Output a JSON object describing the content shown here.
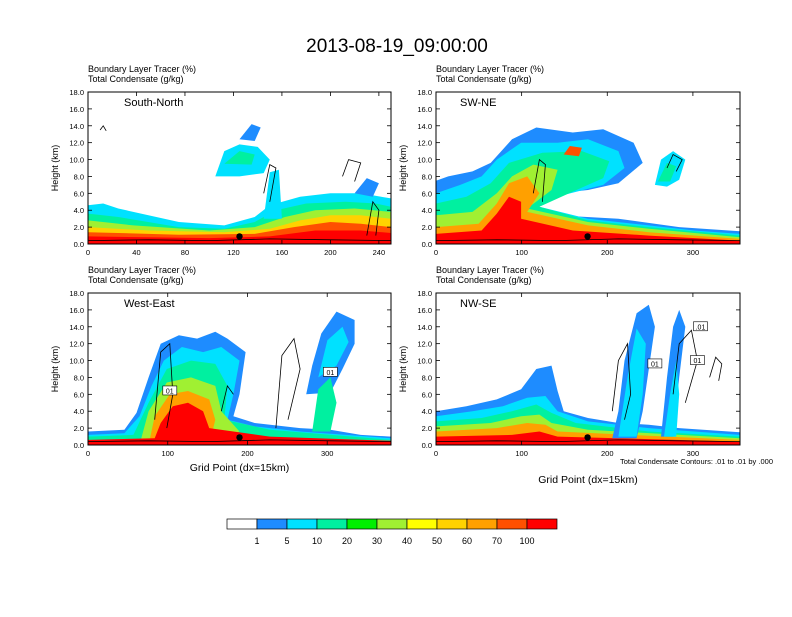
{
  "title": "2013-08-19_09:00:00",
  "footnote": "Total Condensate Contours: .01 to .01 by .000",
  "colorbar": {
    "labels": [
      "1",
      "5",
      "10",
      "20",
      "30",
      "40",
      "50",
      "60",
      "70",
      "100"
    ],
    "colors": [
      "#ffffff",
      "#1e8cff",
      "#00e1ff",
      "#00f0a0",
      "#00f000",
      "#a0f032",
      "#ffff00",
      "#ffd200",
      "#ffa000",
      "#ff5000",
      "#ff0000"
    ]
  },
  "chart_data": [
    {
      "type": "heatmap",
      "header": [
        "Boundary Layer Tracer   (%)",
        "Total Condensate   (g/kg)"
      ],
      "label": "South-North",
      "ylabel": "Height (km)",
      "xlabel": "",
      "xlim": [
        0,
        250
      ],
      "ylim": [
        0,
        18
      ],
      "xticks": [
        "0",
        "40",
        "80",
        "120",
        "160",
        "200",
        "240"
      ],
      "yticks": [
        "0.0",
        "2.0",
        "4.0",
        "6.0",
        "8.0",
        "10.0",
        "12.0",
        "14.0",
        "16.0",
        "18.0"
      ],
      "center_point": 125,
      "contour_labels": []
    },
    {
      "type": "heatmap",
      "header": [
        "Boundary Layer Tracer   (%)",
        "Total Condensate   (g/kg)"
      ],
      "label": "SW-NE",
      "ylabel": "Height (km)",
      "xlabel": "",
      "xlim": [
        0,
        355
      ],
      "ylim": [
        0,
        18
      ],
      "xticks": [
        "0",
        "100",
        "200",
        "300"
      ],
      "yticks": [
        "0.0",
        "2.0",
        "4.0",
        "6.0",
        "8.0",
        "10.0",
        "12.0",
        "14.0",
        "16.0",
        "18.0"
      ],
      "center_point": 177,
      "contour_labels": []
    },
    {
      "type": "heatmap",
      "header": [
        "Boundary Layer Tracer   (%)",
        "Total Condensate   (g/kg)"
      ],
      "label": "West-East",
      "ylabel": "Height (km)",
      "xlabel": "Grid Point (dx=15km)",
      "xlim": [
        0,
        380
      ],
      "ylim": [
        0,
        18
      ],
      "xticks": [
        "0",
        "100",
        "200",
        "300"
      ],
      "yticks": [
        "0.0",
        "2.0",
        "4.0",
        "6.0",
        "8.0",
        "10.0",
        "12.0",
        "14.0",
        "16.0",
        "18.0"
      ],
      "center_point": 190,
      "contour_labels": [
        "01",
        "01"
      ]
    },
    {
      "type": "heatmap",
      "header": [
        "Boundary Layer Tracer   (%)",
        "Total Condensate   (g/kg)"
      ],
      "label": "NW-SE",
      "ylabel": "Height (km)",
      "xlabel": "Grid Point (dx=15km)",
      "xlim": [
        0,
        355
      ],
      "ylim": [
        0,
        18
      ],
      "xticks": [
        "0",
        "100",
        "200",
        "300"
      ],
      "yticks": [
        "0.0",
        "2.0",
        "4.0",
        "6.0",
        "8.0",
        "10.0",
        "12.0",
        "14.0",
        "16.0",
        "18.0"
      ],
      "center_point": 177,
      "contour_labels": [
        "01",
        ".01",
        "01"
      ]
    }
  ]
}
